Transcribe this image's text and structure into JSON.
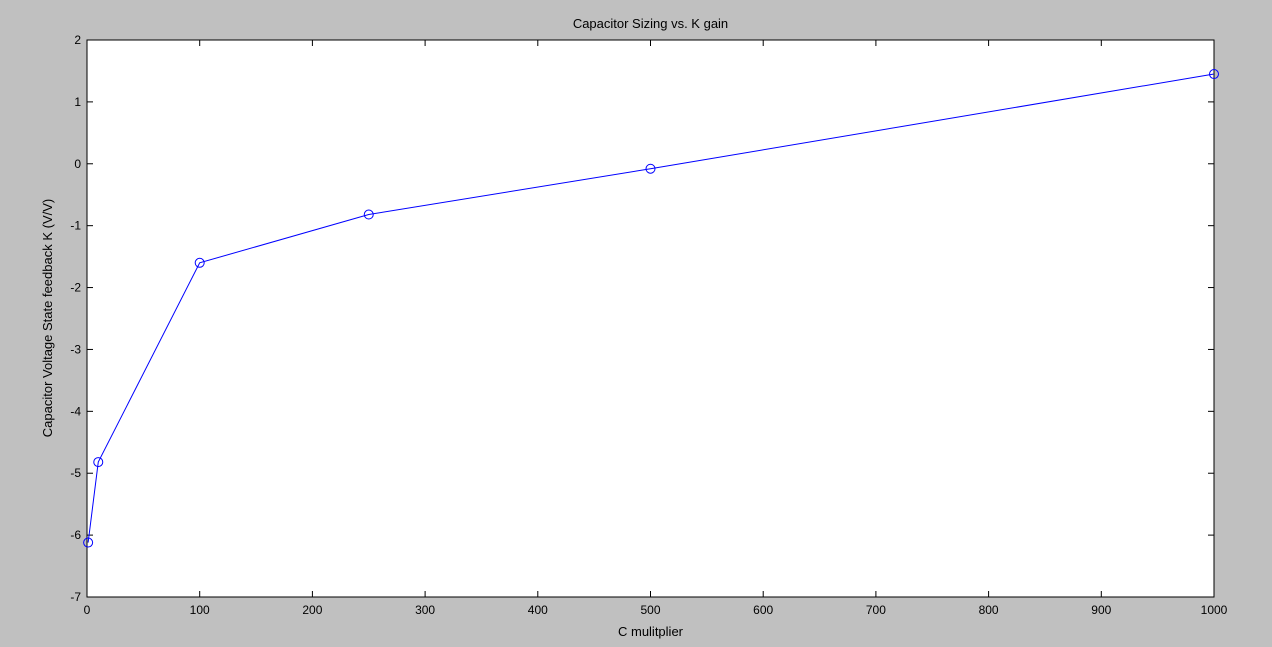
{
  "chart_data": {
    "type": "line",
    "title": "Capacitor Sizing vs. K gain",
    "xlabel": "C mulitplier",
    "ylabel": "Capacitor Voltage State feedback K (V/V)",
    "xlim": [
      0,
      1000
    ],
    "ylim": [
      -7,
      2
    ],
    "xticks": [
      0,
      100,
      200,
      300,
      400,
      500,
      600,
      700,
      800,
      900,
      1000
    ],
    "yticks": [
      2,
      1,
      0,
      -1,
      -2,
      -3,
      -4,
      -5,
      -6,
      -7
    ],
    "grid": false,
    "marker": "circle",
    "colors": {
      "line": "#0000ff",
      "axes_bg": "#ffffff",
      "figure_bg": "#c0c0c0"
    },
    "series": [
      {
        "x": [
          1,
          10,
          100,
          250,
          500,
          1000
        ],
        "y": [
          -6.12,
          -4.82,
          -1.6,
          -0.82,
          -0.08,
          1.45
        ]
      }
    ]
  }
}
